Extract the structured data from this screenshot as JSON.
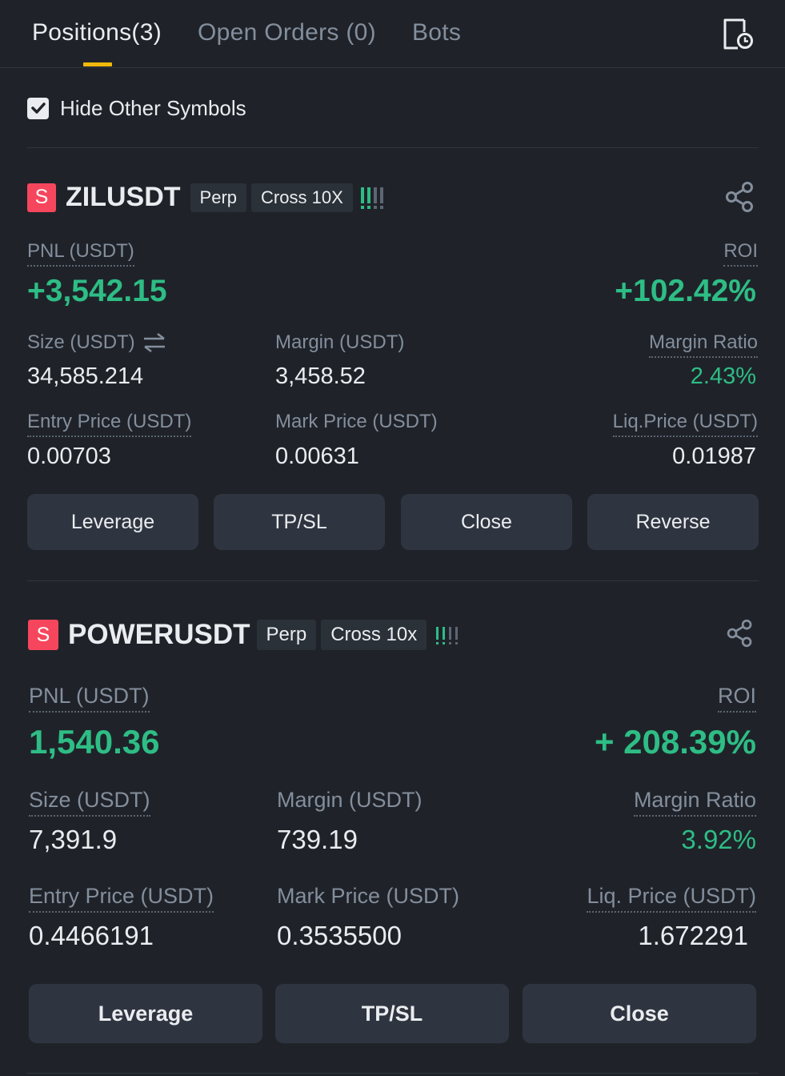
{
  "tabs": [
    {
      "label": "Positions(3)"
    },
    {
      "label": "Open Orders (0)"
    },
    {
      "label": "Bots"
    }
  ],
  "filter": {
    "label": "Hide Other Symbols",
    "checked": true
  },
  "positions": [
    {
      "side": "S",
      "symbol": "ZILUSDT",
      "type_tag": "Perp",
      "margin_tag": "Cross 10X",
      "pnl_label": "PNL (USDT)",
      "pnl_value": "+3,542.15",
      "roi_label": "ROI",
      "roi_value": "+102.42%",
      "size_label": "Size (USDT)",
      "size_value": "34,585.214",
      "margin_label": "Margin (USDT)",
      "margin_value": "3,458.52",
      "margin_ratio_label": "Margin Ratio",
      "margin_ratio_value": "2.43%",
      "entry_label": "Entry Price (USDT)",
      "entry_value": "0.00703",
      "mark_label": "Mark Price (USDT)",
      "mark_value": "0.00631",
      "liq_label": "Liq.Price (USDT)",
      "liq_value": "0.01987",
      "buttons": [
        "Leverage",
        "TP/SL",
        "Close",
        "Reverse"
      ]
    },
    {
      "side": "S",
      "symbol": "POWERUSDT",
      "type_tag": "Perp",
      "margin_tag": "Cross 10x",
      "pnl_label": "PNL (USDT)",
      "pnl_value": "1,540.36",
      "roi_label": "ROI",
      "roi_value": "+ 208.39%",
      "size_label": "Size (USDT)",
      "size_value": "7,391.9",
      "margin_label": "Margin (USDT)",
      "margin_value": "739.19",
      "margin_ratio_label": "Margin Ratio",
      "margin_ratio_value": "3.92%",
      "entry_label": "Entry Price (USDT)",
      "entry_value": "0.4466191",
      "mark_label": "Mark Price (USDT)",
      "mark_value": "0.3535500",
      "liq_label": "Liq. Price (USDT)",
      "liq_value": "1.672291",
      "buttons": [
        "Leverage",
        "TP/SL",
        "Close"
      ]
    }
  ],
  "colors": {
    "background": "#1f2329",
    "profit": "#2ebd85",
    "short": "#f6465d",
    "accent": "#f0b90b",
    "button": "#2f3540"
  },
  "icons": [
    "history-icon",
    "checkbox-checked-icon",
    "leverage-bars-icon",
    "share-icon",
    "swap-icon"
  ]
}
